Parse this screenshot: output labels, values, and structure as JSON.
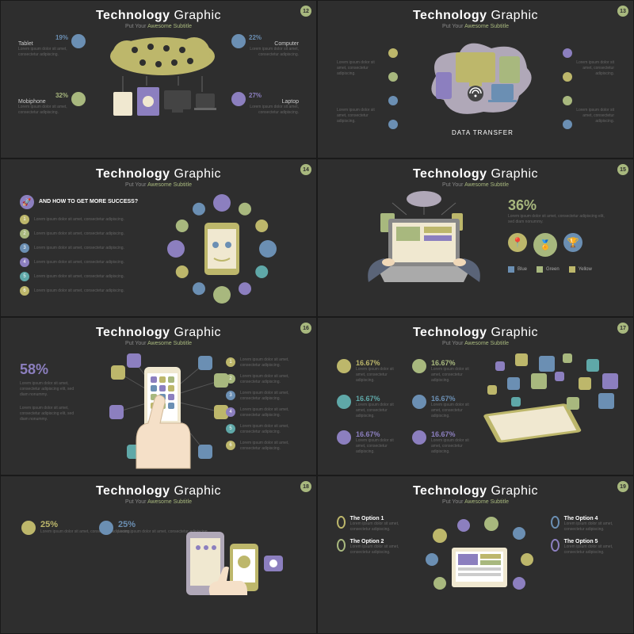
{
  "common": {
    "title_a": "Technology",
    "title_b": "Graphic",
    "subtitle_a": "Put Your",
    "subtitle_b": "Awesome Subtitle",
    "lorem_short": "Lorem ipsum dolor sit amet, consectetur adipiscing.",
    "lorem_med": "Lorem ipsum dolor sit amet, consectetur adipiscing elit, sed diam nonummy.",
    "bg": "#2e2e2e",
    "palette": {
      "olive": "#bdb76b",
      "green": "#a8b87e",
      "purple": "#8c7fbf",
      "blue": "#6b8fb3",
      "teal": "#5fa8a8",
      "cream": "#f0e8d0",
      "grey": "#b0a8b8"
    }
  },
  "s1": {
    "page": "12",
    "items": [
      {
        "label": "Tablet",
        "pct": "19%",
        "color": "#6b8fb3"
      },
      {
        "label": "Mobiphone",
        "pct": "32%",
        "color": "#a8b87e"
      },
      {
        "label": "Computer",
        "pct": "22%",
        "color": "#6b8fb3"
      },
      {
        "label": "Laptop",
        "pct": "27%",
        "color": "#8c7fbf"
      }
    ]
  },
  "s2": {
    "page": "13",
    "caption": "DATA TRANSFER",
    "icons": [
      "#bdb76b",
      "#a8b87e",
      "#6b8fb3",
      "#6b8fb3",
      "#8c7fbf",
      "#bdb76b",
      "#a8b87e",
      "#6b8fb3"
    ]
  },
  "s3": {
    "page": "14",
    "heading": "AND HOW TO GET MORE SUCCESS?",
    "list_colors": [
      "#bdb76b",
      "#a8b87e",
      "#6b8fb3",
      "#8c7fbf",
      "#5fa8a8",
      "#bdb76b"
    ],
    "orbit_colors": [
      "#8c7fbf",
      "#a8b87e",
      "#bdb76b",
      "#6b8fb3",
      "#5fa8a8",
      "#8c7fbf",
      "#a8b87e",
      "#6b8fb3",
      "#bdb76b",
      "#8c7fbf",
      "#a8b87e",
      "#6b8fb3"
    ]
  },
  "s4": {
    "page": "15",
    "pct": "36%",
    "legend": [
      {
        "label": "Blue",
        "color": "#6b8fb3"
      },
      {
        "label": "Green",
        "color": "#a8b87e"
      },
      {
        "label": "Yellow",
        "color": "#bdb76b"
      }
    ],
    "badge_colors": [
      "#bdb76b",
      "#a8b87e",
      "#6b8fb3"
    ]
  },
  "s5": {
    "page": "16",
    "pct": "58%",
    "list_colors": [
      "#bdb76b",
      "#a8b87e",
      "#6b8fb3",
      "#8c7fbf",
      "#5fa8a8",
      "#bdb76b"
    ],
    "around_colors": [
      "#bdb76b",
      "#8c7fbf",
      "#6b8fb3",
      "#a8b87e",
      "#8c7fbf",
      "#bdb76b",
      "#5fa8a8",
      "#6b8fb3"
    ]
  },
  "s6": {
    "page": "17",
    "col_a": [
      {
        "pct": "16.67%",
        "color": "#bdb76b"
      },
      {
        "pct": "16.67%",
        "color": "#5fa8a8"
      },
      {
        "pct": "16.67%",
        "color": "#8c7fbf"
      }
    ],
    "col_b": [
      {
        "pct": "16.67%",
        "color": "#a8b87e"
      },
      {
        "pct": "16.67%",
        "color": "#6b8fb3"
      },
      {
        "pct": "16.67%",
        "color": "#8c7fbf"
      }
    ],
    "bubble_colors": [
      "#8c7fbf",
      "#bdb76b",
      "#6b8fb3",
      "#a8b87e",
      "#5fa8a8",
      "#8c7fbf",
      "#bdb76b",
      "#6b8fb3",
      "#a8b87e",
      "#8c7fbf",
      "#bdb76b",
      "#6b8fb3",
      "#5fa8a8",
      "#a8b87e"
    ]
  },
  "s7": {
    "page": "18",
    "stats": [
      {
        "pct": "25%",
        "color": "#bdb76b"
      },
      {
        "pct": "25%",
        "color": "#6b8fb3"
      }
    ]
  },
  "s8": {
    "page": "19",
    "options": [
      {
        "label": "The Option 1",
        "color": "#bdb76b"
      },
      {
        "label": "The Option 2",
        "color": "#a8b87e"
      },
      {
        "label": "The Option 4",
        "color": "#6b8fb3"
      },
      {
        "label": "The Option 5",
        "color": "#8c7fbf"
      }
    ]
  }
}
